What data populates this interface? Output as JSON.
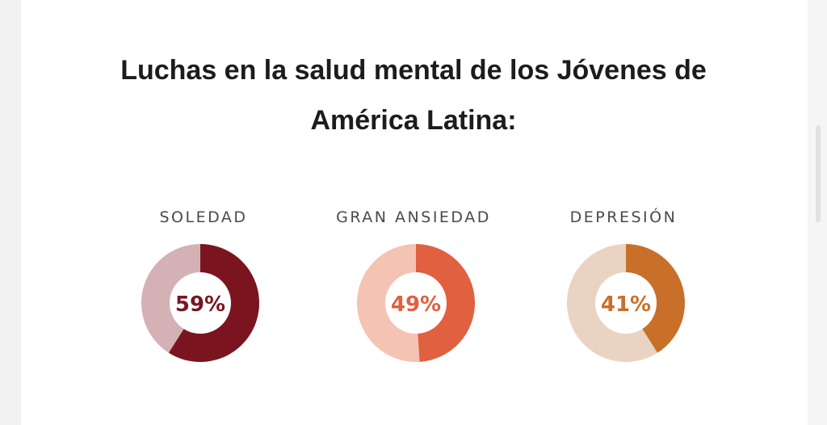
{
  "title": {
    "line1": "Luchas en la salud mental de los Jóvenes de",
    "line2": "América Latina:"
  },
  "chart_data": [
    {
      "type": "pie",
      "title": "SOLEDAD",
      "value": 59,
      "label": "59%",
      "color": "#7a1520",
      "remainder_color": "#d4b1b5"
    },
    {
      "type": "pie",
      "title": "GRAN ANSIEDAD",
      "value": 49,
      "label": "49%",
      "color": "#e06040",
      "remainder_color": "#f4c3b3"
    },
    {
      "type": "pie",
      "title": "DEPRESIÓN",
      "value": 41,
      "label": "41%",
      "color": "#c8702a",
      "remainder_color": "#ead3c2"
    }
  ]
}
